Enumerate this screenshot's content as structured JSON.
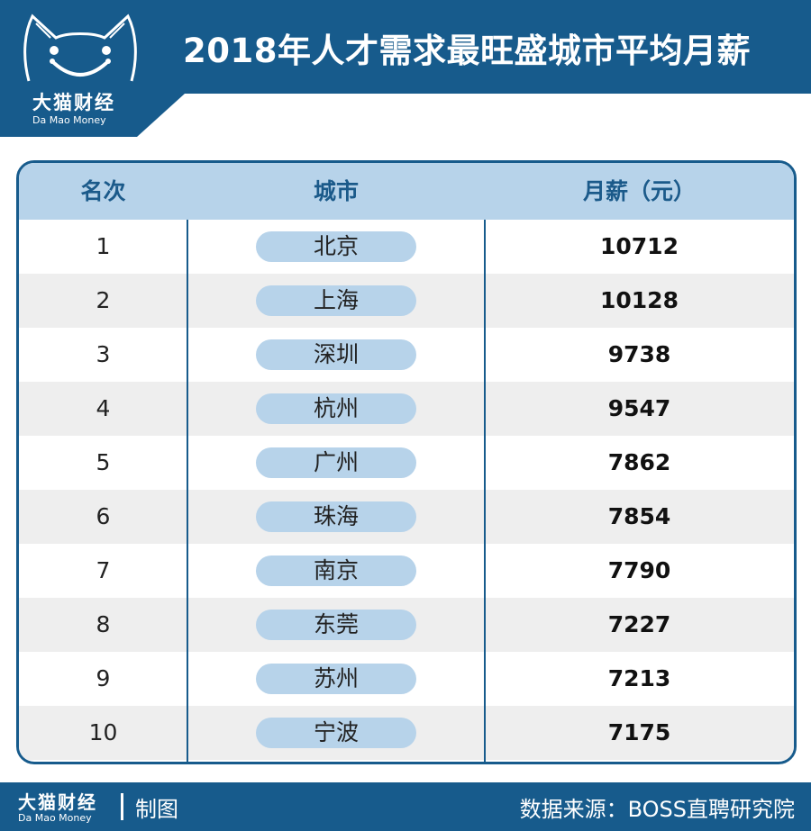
{
  "header": {
    "title": "2018年人才需求最旺盛城市平均月薪",
    "logo_cn": "大猫财经",
    "logo_en": "Da Mao Money"
  },
  "table": {
    "headers": {
      "rank": "名次",
      "city": "城市",
      "salary": "月薪（元）"
    },
    "rows": [
      {
        "rank": "1",
        "city": "北京",
        "salary": "10712"
      },
      {
        "rank": "2",
        "city": "上海",
        "salary": "10128"
      },
      {
        "rank": "3",
        "city": "深圳",
        "salary": "9738"
      },
      {
        "rank": "4",
        "city": "杭州",
        "salary": "9547"
      },
      {
        "rank": "5",
        "city": "广州",
        "salary": "7862"
      },
      {
        "rank": "6",
        "city": "珠海",
        "salary": "7854"
      },
      {
        "rank": "7",
        "city": "南京",
        "salary": "7790"
      },
      {
        "rank": "8",
        "city": "东莞",
        "salary": "7227"
      },
      {
        "rank": "9",
        "city": "苏州",
        "salary": "7213"
      },
      {
        "rank": "10",
        "city": "宁波",
        "salary": "7175"
      }
    ]
  },
  "footer": {
    "brand_cn": "大猫财经",
    "brand_en": "Da Mao Money",
    "made_by": "制图",
    "source": "数据来源：BOSS直聘研究院"
  },
  "colors": {
    "brand_blue": "#175b8c",
    "light_blue": "#b7d3ea",
    "alt_row": "#eeeeee"
  },
  "icons": {
    "logo": "cat-face-icon"
  }
}
